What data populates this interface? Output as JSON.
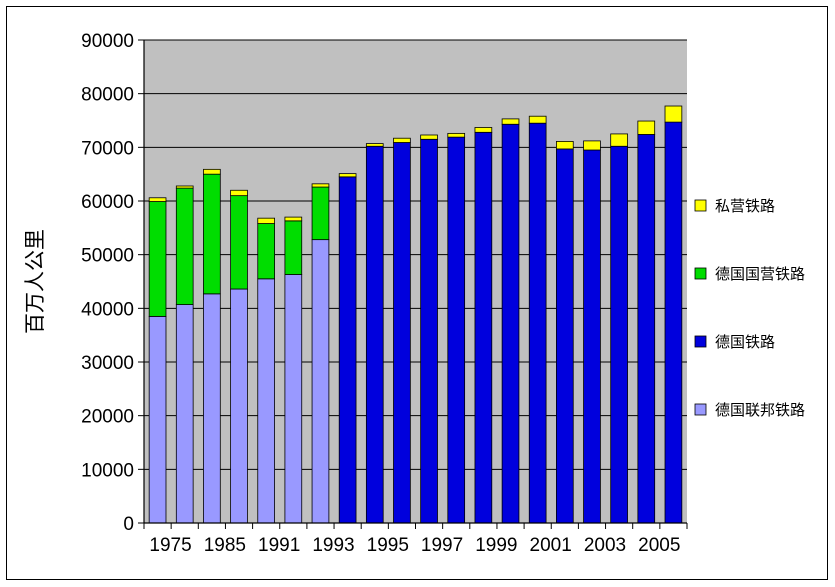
{
  "chart_data": {
    "type": "bar",
    "stacked": true,
    "title": "",
    "xlabel": "",
    "ylabel": "百万人公里",
    "ylim": [
      0,
      90000
    ],
    "y_ticks": [
      0,
      10000,
      20000,
      30000,
      40000,
      50000,
      60000,
      70000,
      80000,
      90000
    ],
    "grid": true,
    "legend_position": "right",
    "categories": [
      "1975",
      "1980",
      "1985",
      "1990",
      "1991",
      "1992",
      "1993",
      "1994",
      "1995",
      "1996",
      "1997",
      "1998",
      "1999",
      "2000",
      "2001",
      "2002",
      "2003",
      "2004",
      "2005",
      "2006"
    ],
    "x_tick_labels": [
      "1975",
      "1985",
      "1991",
      "1993",
      "1995",
      "1997",
      "1999",
      "2001",
      "2003",
      "2005"
    ],
    "series": [
      {
        "name": "德国联邦铁路",
        "color": "#9999ff",
        "values": [
          38500,
          40700,
          42700,
          43600,
          45500,
          46300,
          52800,
          0,
          0,
          0,
          0,
          0,
          0,
          0,
          0,
          0,
          0,
          0,
          0,
          0
        ]
      },
      {
        "name": "德国铁路",
        "color": "#0000dd",
        "values": [
          0,
          0,
          0,
          0,
          0,
          0,
          0,
          64500,
          70200,
          70900,
          71500,
          71900,
          72800,
          74300,
          74500,
          69700,
          69500,
          70200,
          72400,
          74700
        ]
      },
      {
        "name": "德国国营铁路",
        "color": "#00dd00",
        "values": [
          21400,
          21700,
          22300,
          17400,
          10300,
          10000,
          9800,
          0,
          0,
          0,
          0,
          0,
          0,
          0,
          0,
          0,
          0,
          0,
          0,
          0
        ]
      },
      {
        "name": "私营铁路",
        "color": "#ffff00",
        "values": [
          700,
          400,
          900,
          1000,
          1000,
          700,
          600,
          600,
          500,
          800,
          800,
          700,
          900,
          1000,
          1300,
          1400,
          1700,
          2300,
          2500,
          3000
        ]
      }
    ]
  },
  "colors": {
    "plot_bg": "#c0c0c0",
    "axis": "#000000",
    "bar_outline": "#000000"
  }
}
